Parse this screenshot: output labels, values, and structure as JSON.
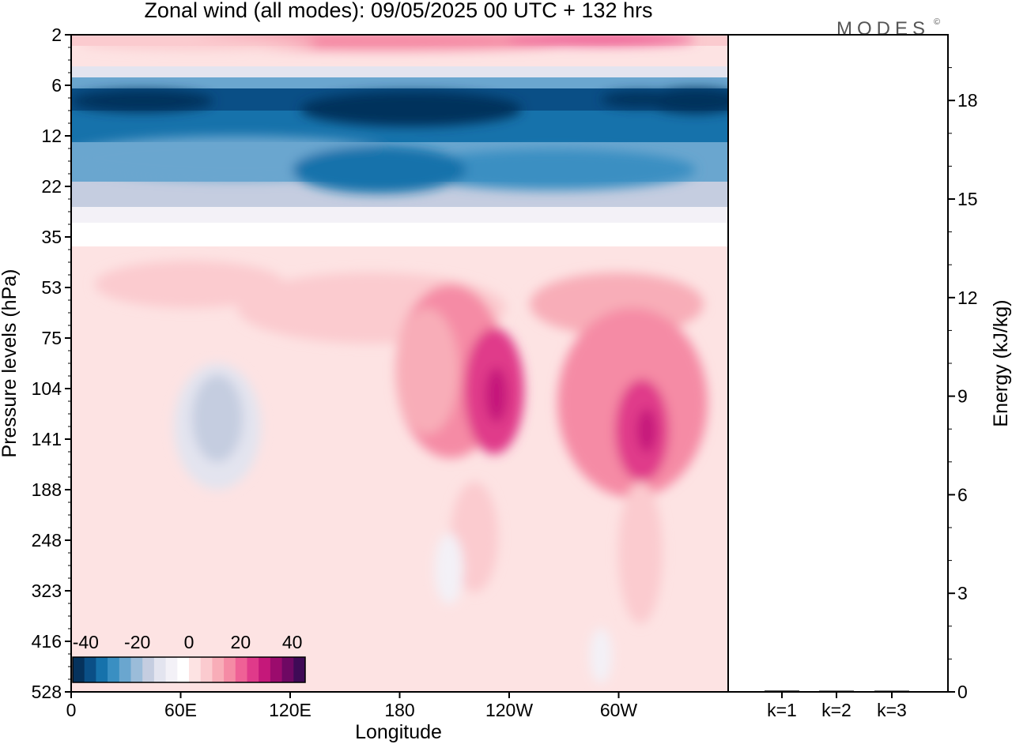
{
  "title": "Zonal wind (all modes):  09/05/2025  00 UTC  + 132 hrs",
  "logo": "MODES",
  "logo_mark": "©",
  "chart_data": [
    {
      "type": "heatmap",
      "title": "Zonal wind (all modes):  09/05/2025  00 UTC  + 132 hrs",
      "xlabel": "Longitude",
      "ylabel": "Pressure levels (hPa)",
      "x_ticks": [
        "0",
        "60E",
        "120E",
        "180",
        "120W",
        "60W"
      ],
      "y_ticks": [
        "2",
        "6",
        "12",
        "22",
        "35",
        "53",
        "75",
        "104",
        "141",
        "188",
        "248",
        "323",
        "416",
        "528"
      ],
      "y_scale": "log-pressure, decreasing upward",
      "colorbar": {
        "tick_labels": [
          "-40",
          "-20",
          "0",
          "20",
          "40"
        ],
        "range": [
          -45,
          45
        ],
        "colors": [
          "#05325c",
          "#0a4f86",
          "#1672ab",
          "#3a8fc2",
          "#6aa6cf",
          "#9bbcd9",
          "#c5cde0",
          "#e3e4ef",
          "#f3f1f7",
          "#ffffff",
          "#fde3e3",
          "#fbcbcf",
          "#f8adb8",
          "#f58ba5",
          "#ef6196",
          "#e03a8a",
          "#c5187a",
          "#9b0b6d",
          "#6e0863",
          "#3f0a56"
        ]
      },
      "wind_regions": [
        {
          "label": "upper positive band near 2 hPa",
          "value": 12
        },
        {
          "label": "easterly jet near 8 hPa",
          "value": -40
        },
        {
          "label": "negative layer 12-22 hPa",
          "value": -28
        },
        {
          "label": "weak negative near 35 hPa",
          "value": -8
        },
        {
          "label": "westerly core near 120W, 110 hPa",
          "value": 25
        },
        {
          "label": "westerly core near 45W, 140 hPa",
          "value": 25
        },
        {
          "label": "easterly patch near 80E, 130 hPa",
          "value": -15
        }
      ]
    },
    {
      "type": "bar",
      "ylabel": "Energy (kJ/kg)",
      "categories": [
        "k=1",
        "k=2",
        "k=3"
      ],
      "values": [
        0.04,
        0.02,
        0.01
      ],
      "ylim": [
        0,
        20
      ],
      "y_ticks": [
        "0",
        "3",
        "6",
        "9",
        "12",
        "15",
        "18"
      ]
    }
  ]
}
